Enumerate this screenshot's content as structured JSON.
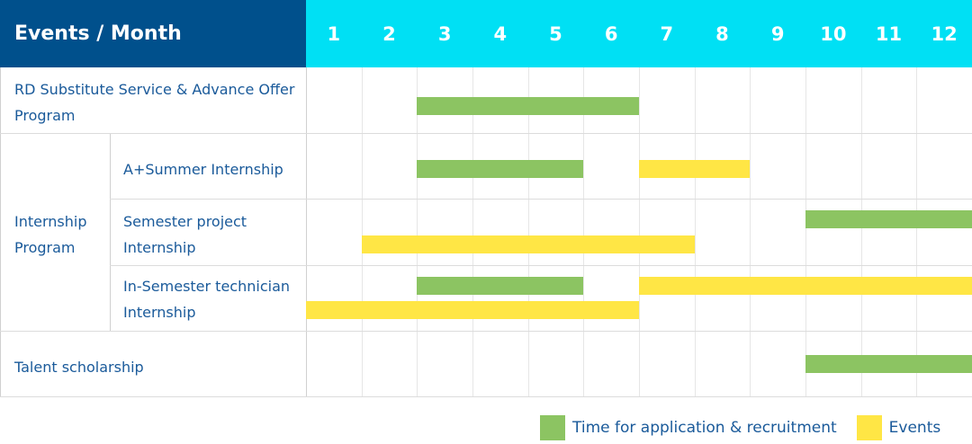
{
  "chart_data": {
    "type": "gantt",
    "title": "Events / Month",
    "months": [
      "1",
      "2",
      "3",
      "4",
      "5",
      "6",
      "7",
      "8",
      "9",
      "10",
      "11",
      "12"
    ],
    "colors": {
      "header_dark": "#00508c",
      "header_light": "#00e0f4",
      "application": "#8cc462",
      "events": "#ffe645",
      "text": "#1a5a9a"
    },
    "groups": [
      {
        "label": "RD Substitute Service & Advance Offer Program"
      },
      {
        "label": "Internship Program"
      },
      {
        "label": "Talent scholarship"
      }
    ],
    "rows": [
      {
        "label": "",
        "bars": [
          {
            "type": "application",
            "start": 3,
            "end": 6
          }
        ]
      },
      {
        "label": "A+Summer Internship",
        "bars": [
          {
            "type": "application",
            "start": 3,
            "end": 5
          },
          {
            "type": "events",
            "start": 7,
            "end": 8
          }
        ]
      },
      {
        "label": "Semester project Internship",
        "bars": [
          {
            "type": "application",
            "start": 10,
            "end": 12
          },
          {
            "type": "events",
            "start": 2,
            "end": 7
          }
        ]
      },
      {
        "label": "In-Semester technician Internship",
        "bars": [
          {
            "type": "application",
            "start": 3,
            "end": 5
          },
          {
            "type": "events",
            "start": 7,
            "end": 12
          },
          {
            "type": "events",
            "start": 1,
            "end": 6
          }
        ]
      },
      {
        "label": "",
        "bars": [
          {
            "type": "application",
            "start": 10,
            "end": 12
          }
        ]
      }
    ],
    "legend": [
      {
        "type": "application",
        "label": "Time for application & recruitment"
      },
      {
        "type": "events",
        "label": "Events"
      }
    ]
  }
}
